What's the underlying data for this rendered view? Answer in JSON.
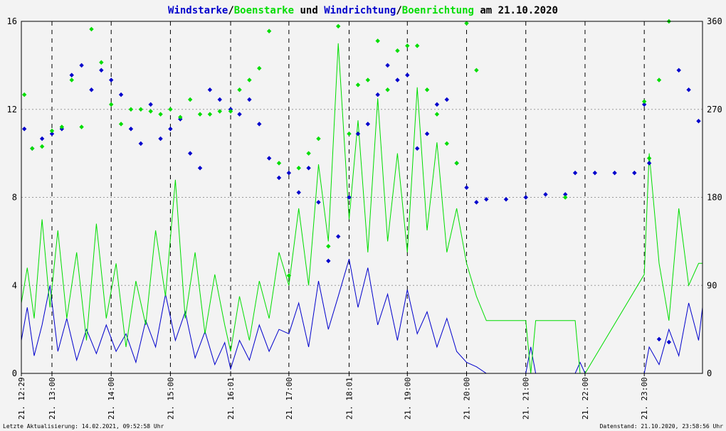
{
  "chart_data": {
    "type": "line",
    "title_parts": [
      {
        "text": "Windstarke",
        "color": "#0000cc"
      },
      {
        "text": "/",
        "color": "#000000"
      },
      {
        "text": "Boenstarke",
        "color": "#00dd00"
      },
      {
        "text": " und ",
        "color": "#000000"
      },
      {
        "text": "Windrichtung",
        "color": "#0000cc"
      },
      {
        "text": "/",
        "color": "#000000"
      },
      {
        "text": "Boenrichtung",
        "color": "#00dd00"
      },
      {
        "text": " am 21.10.2020",
        "color": "#000000"
      }
    ],
    "colors": {
      "wind": "#0000cc",
      "gust": "#00dd00",
      "grid": "#999999",
      "background": "#f3f3f3"
    },
    "y_left": {
      "min": 0,
      "max": 16,
      "ticks": [
        "0",
        "4",
        "8",
        "12",
        "16"
      ]
    },
    "y_right": {
      "min": 0,
      "max": 360,
      "ticks": [
        "0",
        "90",
        "180",
        "270",
        "360"
      ]
    },
    "x": {
      "start": "12:29",
      "end": "23:59"
    },
    "x_tick_labels": [
      {
        "time": "12:29",
        "label": "21. 12:29"
      },
      {
        "time": "13:00",
        "label": "21. 13:00"
      },
      {
        "time": "14:00",
        "label": "21. 14:00"
      },
      {
        "time": "15:00",
        "label": "21. 15:00"
      },
      {
        "time": "16:01",
        "label": "21. 16:01"
      },
      {
        "time": "17:00",
        "label": "21. 17:00"
      },
      {
        "time": "18:01",
        "label": "21. 18:01"
      },
      {
        "time": "19:00",
        "label": "21. 19:00"
      },
      {
        "time": "20:00",
        "label": "21. 20:00"
      },
      {
        "time": "21:00",
        "label": "21. 21:00"
      },
      {
        "time": "22:00",
        "label": "21. 22:00"
      },
      {
        "time": "23:00",
        "label": "21. 23:00"
      }
    ],
    "gridlines_vertical": [
      "13:00",
      "14:00",
      "15:00",
      "16:01",
      "17:00",
      "18:01",
      "19:00",
      "20:00",
      "21:00",
      "22:00",
      "23:00"
    ],
    "series": [
      {
        "name": "Windstarke",
        "kind": "line",
        "color": "#0000cc",
        "points": [
          [
            "12:29",
            1.5
          ],
          [
            "12:35",
            3.0
          ],
          [
            "12:42",
            0.8
          ],
          [
            "12:50",
            2.2
          ],
          [
            "12:58",
            4.0
          ],
          [
            "13:06",
            1.0
          ],
          [
            "13:15",
            2.5
          ],
          [
            "13:25",
            0.6
          ],
          [
            "13:35",
            2.0
          ],
          [
            "13:45",
            0.9
          ],
          [
            "13:55",
            2.2
          ],
          [
            "14:05",
            1.0
          ],
          [
            "14:15",
            1.8
          ],
          [
            "14:25",
            0.5
          ],
          [
            "14:35",
            2.4
          ],
          [
            "14:45",
            1.2
          ],
          [
            "14:55",
            3.6
          ],
          [
            "15:05",
            1.5
          ],
          [
            "15:15",
            2.8
          ],
          [
            "15:25",
            0.7
          ],
          [
            "15:35",
            1.9
          ],
          [
            "15:45",
            0.4
          ],
          [
            "15:55",
            1.4
          ],
          [
            "16:01",
            0.2
          ],
          [
            "16:10",
            1.5
          ],
          [
            "16:20",
            0.6
          ],
          [
            "16:30",
            2.2
          ],
          [
            "16:40",
            1.0
          ],
          [
            "16:50",
            2.0
          ],
          [
            "17:00",
            1.8
          ],
          [
            "17:10",
            3.2
          ],
          [
            "17:20",
            1.2
          ],
          [
            "17:30",
            4.2
          ],
          [
            "17:40",
            2.0
          ],
          [
            "17:50",
            3.5
          ],
          [
            "18:01",
            5.2
          ],
          [
            "18:10",
            3.0
          ],
          [
            "18:20",
            4.8
          ],
          [
            "18:30",
            2.2
          ],
          [
            "18:40",
            3.6
          ],
          [
            "18:50",
            1.5
          ],
          [
            "19:00",
            3.8
          ],
          [
            "19:10",
            1.8
          ],
          [
            "19:20",
            2.8
          ],
          [
            "19:30",
            1.2
          ],
          [
            "19:40",
            2.5
          ],
          [
            "19:50",
            1.0
          ],
          [
            "20:00",
            0.5
          ],
          [
            "20:10",
            0.3
          ],
          [
            "20:20",
            0
          ],
          [
            "21:00",
            0
          ],
          [
            "21:05",
            1.2
          ],
          [
            "21:10",
            0
          ],
          [
            "21:50",
            0
          ],
          [
            "21:55",
            0.5
          ],
          [
            "22:00",
            0
          ],
          [
            "23:00",
            0
          ],
          [
            "23:05",
            1.2
          ],
          [
            "23:15",
            0.4
          ],
          [
            "23:25",
            2.0
          ],
          [
            "23:35",
            0.8
          ],
          [
            "23:45",
            3.2
          ],
          [
            "23:55",
            1.5
          ],
          [
            "23:59",
            3.0
          ]
        ]
      },
      {
        "name": "Boenstarke",
        "kind": "line",
        "color": "#00dd00",
        "points": [
          [
            "12:29",
            3.2
          ],
          [
            "12:35",
            4.8
          ],
          [
            "12:42",
            2.5
          ],
          [
            "12:50",
            7.0
          ],
          [
            "12:58",
            3.0
          ],
          [
            "13:06",
            6.5
          ],
          [
            "13:15",
            2.5
          ],
          [
            "13:25",
            5.5
          ],
          [
            "13:35",
            1.5
          ],
          [
            "13:45",
            6.8
          ],
          [
            "13:55",
            2.5
          ],
          [
            "14:05",
            5.0
          ],
          [
            "14:15",
            1.2
          ],
          [
            "14:25",
            4.2
          ],
          [
            "14:35",
            2.2
          ],
          [
            "14:45",
            6.5
          ],
          [
            "14:55",
            3.5
          ],
          [
            "15:05",
            8.8
          ],
          [
            "15:15",
            2.5
          ],
          [
            "15:25",
            5.5
          ],
          [
            "15:35",
            1.8
          ],
          [
            "15:45",
            4.5
          ],
          [
            "15:55",
            2.2
          ],
          [
            "16:01",
            1.0
          ],
          [
            "16:10",
            3.5
          ],
          [
            "16:20",
            1.5
          ],
          [
            "16:30",
            4.2
          ],
          [
            "16:40",
            2.5
          ],
          [
            "16:50",
            5.5
          ],
          [
            "17:00",
            4.0
          ],
          [
            "17:10",
            7.5
          ],
          [
            "17:20",
            4.0
          ],
          [
            "17:30",
            9.5
          ],
          [
            "17:40",
            6.0
          ],
          [
            "17:50",
            15.0
          ],
          [
            "18:01",
            7.0
          ],
          [
            "18:10",
            11.5
          ],
          [
            "18:20",
            5.5
          ],
          [
            "18:30",
            12.5
          ],
          [
            "18:40",
            6.0
          ],
          [
            "18:50",
            10.0
          ],
          [
            "19:00",
            5.5
          ],
          [
            "19:10",
            13.0
          ],
          [
            "19:20",
            6.5
          ],
          [
            "19:30",
            10.5
          ],
          [
            "19:40",
            5.5
          ],
          [
            "19:50",
            7.5
          ],
          [
            "20:00",
            5.0
          ],
          [
            "20:10",
            3.5
          ],
          [
            "20:20",
            2.4
          ],
          [
            "21:00",
            2.4
          ],
          [
            "21:05",
            0
          ],
          [
            "21:10",
            2.4
          ],
          [
            "21:50",
            2.4
          ],
          [
            "21:55",
            0
          ],
          [
            "22:00",
            0
          ],
          [
            "23:00",
            4.5
          ],
          [
            "23:05",
            10.0
          ],
          [
            "23:15",
            5.0
          ],
          [
            "23:25",
            2.4
          ],
          [
            "23:35",
            7.5
          ],
          [
            "23:45",
            4.0
          ],
          [
            "23:55",
            5.0
          ],
          [
            "23:59",
            5.0
          ]
        ]
      },
      {
        "name": "Windrichtung",
        "kind": "scatter",
        "color": "#0000cc",
        "axis": "right",
        "points": [
          [
            "12:32",
            250
          ],
          [
            "12:40",
            230
          ],
          [
            "12:50",
            240
          ],
          [
            "13:00",
            245
          ],
          [
            "13:10",
            250
          ],
          [
            "13:20",
            305
          ],
          [
            "13:30",
            315
          ],
          [
            "13:40",
            290
          ],
          [
            "13:50",
            310
          ],
          [
            "14:00",
            300
          ],
          [
            "14:10",
            285
          ],
          [
            "14:20",
            250
          ],
          [
            "14:30",
            235
          ],
          [
            "14:40",
            275
          ],
          [
            "14:50",
            240
          ],
          [
            "15:00",
            250
          ],
          [
            "15:10",
            260
          ],
          [
            "15:20",
            225
          ],
          [
            "15:30",
            210
          ],
          [
            "15:40",
            290
          ],
          [
            "15:50",
            280
          ],
          [
            "16:01",
            270
          ],
          [
            "16:10",
            265
          ],
          [
            "16:20",
            280
          ],
          [
            "16:30",
            255
          ],
          [
            "16:40",
            220
          ],
          [
            "16:50",
            200
          ],
          [
            "17:00",
            205
          ],
          [
            "17:10",
            185
          ],
          [
            "17:20",
            210
          ],
          [
            "17:30",
            175
          ],
          [
            "17:40",
            115
          ],
          [
            "17:50",
            140
          ],
          [
            "18:01",
            180
          ],
          [
            "18:10",
            245
          ],
          [
            "18:20",
            255
          ],
          [
            "18:30",
            285
          ],
          [
            "18:40",
            315
          ],
          [
            "18:50",
            300
          ],
          [
            "19:00",
            305
          ],
          [
            "19:10",
            230
          ],
          [
            "19:20",
            245
          ],
          [
            "19:30",
            275
          ],
          [
            "19:40",
            280
          ],
          [
            "19:50",
            215
          ],
          [
            "20:00",
            190
          ],
          [
            "20:10",
            175
          ],
          [
            "20:20",
            178
          ],
          [
            "20:40",
            178
          ],
          [
            "21:00",
            180
          ],
          [
            "21:20",
            183
          ],
          [
            "21:40",
            183
          ],
          [
            "21:50",
            205
          ],
          [
            "22:10",
            205
          ],
          [
            "22:30",
            205
          ],
          [
            "22:50",
            205
          ],
          [
            "23:00",
            275
          ],
          [
            "23:05",
            215
          ],
          [
            "23:15",
            35
          ],
          [
            "23:25",
            32
          ],
          [
            "23:35",
            310
          ],
          [
            "23:45",
            290
          ],
          [
            "23:55",
            258
          ]
        ]
      },
      {
        "name": "Boenrichtung",
        "kind": "scatter",
        "color": "#00dd00",
        "axis": "right",
        "points": [
          [
            "12:32",
            285
          ],
          [
            "12:40",
            230
          ],
          [
            "12:50",
            232
          ],
          [
            "13:00",
            248
          ],
          [
            "13:10",
            252
          ],
          [
            "13:20",
            300
          ],
          [
            "13:30",
            252
          ],
          [
            "13:40",
            352
          ],
          [
            "13:50",
            318
          ],
          [
            "14:00",
            275
          ],
          [
            "14:10",
            255
          ],
          [
            "14:20",
            270
          ],
          [
            "14:30",
            270
          ],
          [
            "14:40",
            268
          ],
          [
            "14:50",
            265
          ],
          [
            "15:00",
            270
          ],
          [
            "15:10",
            262
          ],
          [
            "15:20",
            280
          ],
          [
            "15:30",
            265
          ],
          [
            "15:40",
            265
          ],
          [
            "15:50",
            268
          ],
          [
            "16:01",
            268
          ],
          [
            "16:10",
            290
          ],
          [
            "16:20",
            300
          ],
          [
            "16:30",
            312
          ],
          [
            "16:40",
            350
          ],
          [
            "16:50",
            215
          ],
          [
            "17:00",
            100
          ],
          [
            "17:10",
            210
          ],
          [
            "17:20",
            225
          ],
          [
            "17:30",
            240
          ],
          [
            "17:40",
            130
          ],
          [
            "17:50",
            355
          ],
          [
            "18:01",
            245
          ],
          [
            "18:10",
            295
          ],
          [
            "18:20",
            300
          ],
          [
            "18:30",
            340
          ],
          [
            "18:40",
            290
          ],
          [
            "18:50",
            330
          ],
          [
            "19:00",
            335
          ],
          [
            "19:10",
            335
          ],
          [
            "19:20",
            290
          ],
          [
            "19:30",
            265
          ],
          [
            "19:40",
            235
          ],
          [
            "19:50",
            215
          ],
          [
            "20:00",
            358
          ],
          [
            "20:10",
            310
          ],
          [
            "21:40",
            180
          ],
          [
            "23:00",
            278
          ],
          [
            "23:05",
            220
          ],
          [
            "23:15",
            300
          ],
          [
            "23:25",
            360
          ]
        ]
      }
    ]
  },
  "footer": {
    "left": "Letzte Aktualisierung: 14.02.2021, 09:52:58 Uhr",
    "right": "Datenstand: 21.10.2020, 23:58:56 Uhr"
  }
}
